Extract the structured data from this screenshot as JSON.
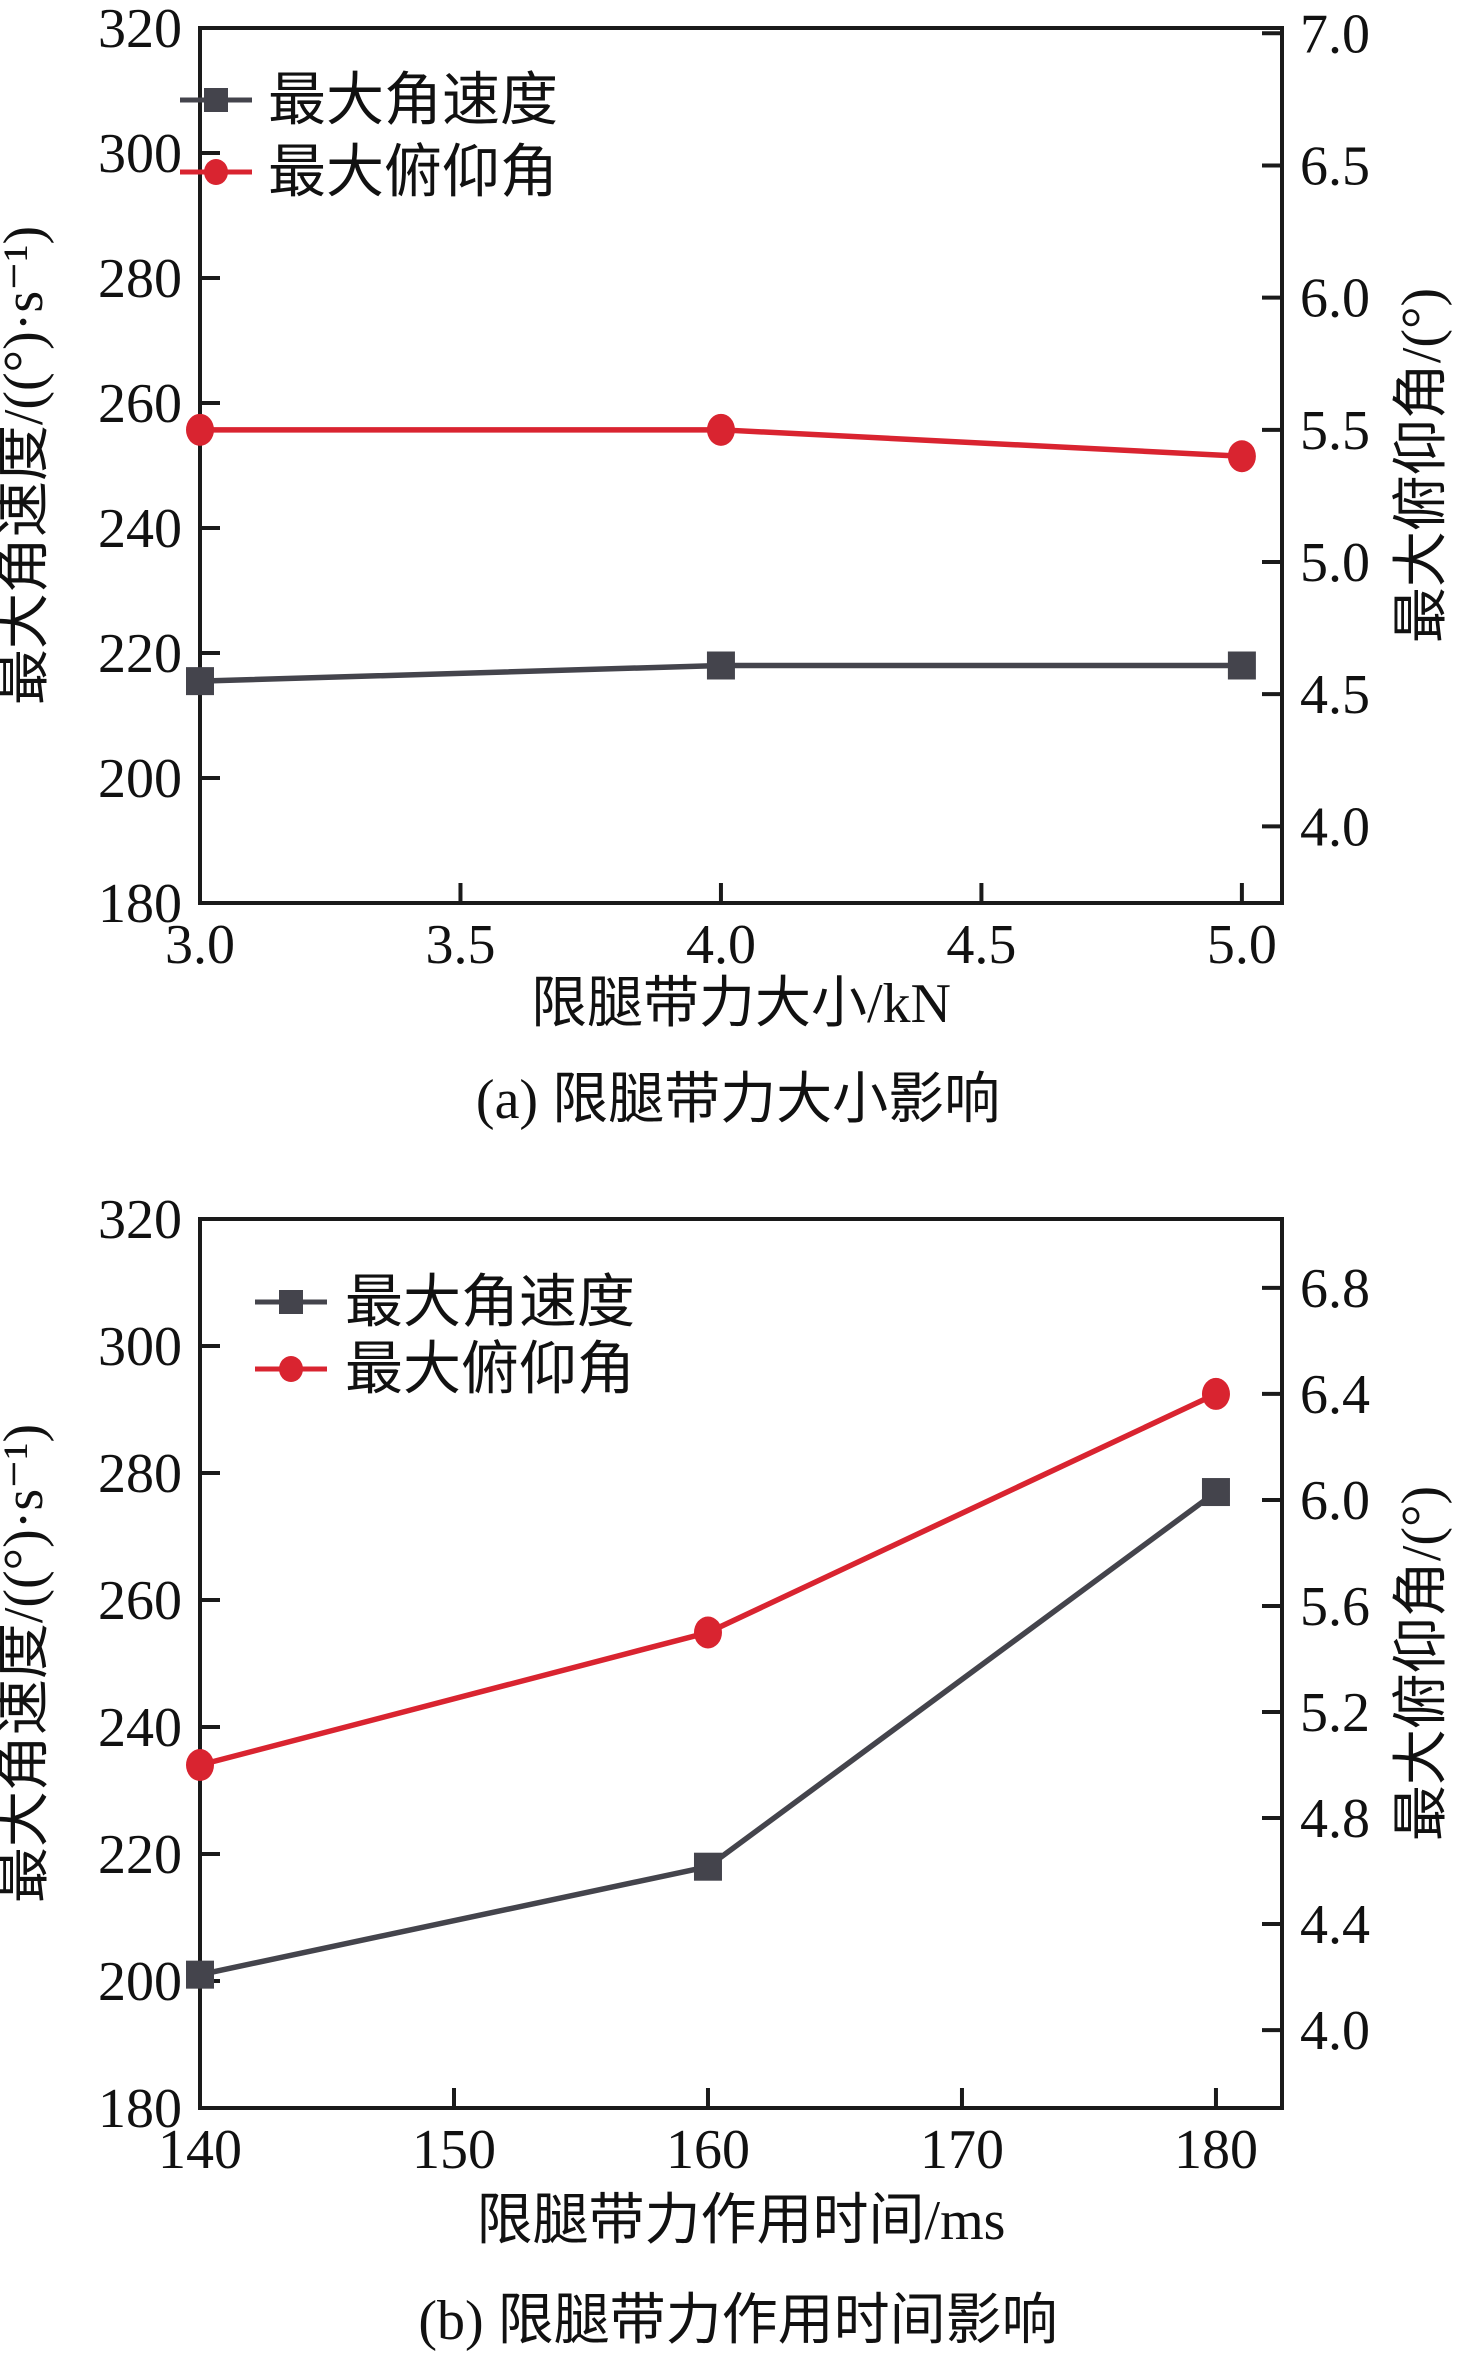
{
  "figure": {
    "background": "#ffffff",
    "frame_color": "#1a1a1a",
    "text_color": "#111111"
  },
  "chart_data": [
    {
      "id": "a",
      "type": "line",
      "caption": "(a) 限腿带力大小影响",
      "xlabel": "限腿带力大小/kN",
      "ylabel_left": "最大角速度/((°)·s⁻¹)",
      "ylabel_right": "最大俯仰角/(°)",
      "grid": false,
      "legend_position": "top-left",
      "x": [
        3.0,
        4.0,
        5.0
      ],
      "x_ticks": [
        3.0,
        3.5,
        4.0,
        4.5,
        5.0
      ],
      "x_tick_labels": [
        "3.0",
        "3.5",
        "4.0",
        "4.5",
        "5.0"
      ],
      "xlim": [
        3.0,
        5.077
      ],
      "left_ticks": [
        320,
        300,
        280,
        260,
        240,
        220,
        200,
        180
      ],
      "left_tick_labels": [
        "320",
        "300",
        "280",
        "260",
        "240",
        "220",
        "200",
        "180"
      ],
      "ylim_left": [
        180,
        320
      ],
      "right_ticks": [
        7.0,
        6.5,
        6.0,
        5.5,
        5.0,
        4.5,
        4.0
      ],
      "right_tick_labels": [
        "7.0",
        "6.5",
        "6.0",
        "5.5",
        "5.0",
        "4.5",
        "4.0"
      ],
      "ylim_right": [
        3.71,
        7.02
      ],
      "series": [
        {
          "name": "最大角速度",
          "axis": "left",
          "marker": "square",
          "color": "#44444c",
          "values": [
            215.5,
            218,
            218
          ]
        },
        {
          "name": "最大俯仰角",
          "axis": "right",
          "marker": "circle",
          "color": "#d92430",
          "values": [
            5.5,
            5.5,
            5.4
          ]
        }
      ]
    },
    {
      "id": "b",
      "type": "line",
      "caption": "(b) 限腿带力作用时间影响",
      "xlabel": "限腿带力作用时间/ms",
      "ylabel_left": "最大角速度/((°)·s⁻¹)",
      "ylabel_right": "最大俯仰角/(°)",
      "grid": false,
      "legend_position": "top-left",
      "x": [
        140,
        160,
        180
      ],
      "x_ticks": [
        140,
        150,
        160,
        170,
        180
      ],
      "x_tick_labels": [
        "140",
        "150",
        "160",
        "170",
        "180"
      ],
      "xlim": [
        140,
        182.6
      ],
      "left_ticks": [
        320,
        300,
        280,
        260,
        240,
        220,
        200,
        180
      ],
      "left_tick_labels": [
        "320",
        "300",
        "280",
        "260",
        "240",
        "220",
        "200",
        "180"
      ],
      "ylim_left": [
        180,
        320
      ],
      "right_ticks": [
        6.8,
        6.4,
        6.0,
        5.6,
        5.2,
        4.8,
        4.4,
        4.0
      ],
      "right_tick_labels": [
        "6.8",
        "6.4",
        "6.0",
        "5.6",
        "5.2",
        "4.8",
        "4.4",
        "4.0"
      ],
      "ylim_right": [
        3.706,
        7.06
      ],
      "series": [
        {
          "name": "最大角速度",
          "axis": "left",
          "marker": "square",
          "color": "#44444c",
          "values": [
            201,
            218,
            277
          ]
        },
        {
          "name": "最大俯仰角",
          "axis": "right",
          "marker": "circle",
          "color": "#d92430",
          "values": [
            5.0,
            5.5,
            6.4
          ]
        }
      ]
    }
  ]
}
